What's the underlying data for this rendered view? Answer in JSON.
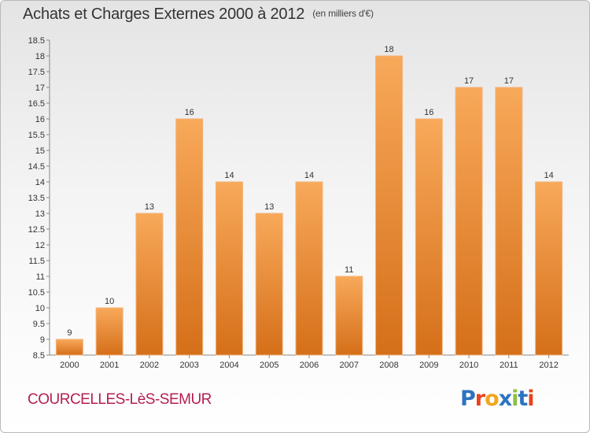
{
  "header": {
    "title": "Achats et Charges Externes 2000 à 2012",
    "unit": "(en milliers d'€)"
  },
  "footer": {
    "commune": "COURCELLES-LèS-SEMUR",
    "logo": "Proxiti"
  },
  "colors": {
    "bar_top": "#f8a95a",
    "bar_bottom": "#d56f19",
    "commune": "#b51f4f"
  },
  "chart_data": {
    "type": "bar",
    "title": "Achats et Charges Externes 2000 à 2012",
    "subtitle": "(en milliers d'€)",
    "categories": [
      "2000",
      "2001",
      "2002",
      "2003",
      "2004",
      "2005",
      "2006",
      "2007",
      "2008",
      "2009",
      "2010",
      "2011",
      "2012"
    ],
    "values": [
      9,
      10,
      13,
      16,
      14,
      13,
      14,
      11,
      18,
      16,
      17,
      17,
      14
    ],
    "data_labels": [
      "9",
      "10",
      "13",
      "16",
      "14",
      "13",
      "14",
      "11",
      "18",
      "16",
      "17",
      "17",
      "14"
    ],
    "ylim": [
      8.5,
      18.5
    ],
    "yticks": [
      "8.5",
      "9",
      "9.5",
      "10",
      "10.5",
      "11",
      "11.5",
      "12",
      "12.5",
      "13",
      "13.5",
      "14",
      "14.5",
      "15",
      "15.5",
      "16",
      "16.5",
      "17",
      "17.5",
      "18",
      "18.5"
    ],
    "grid": false
  }
}
